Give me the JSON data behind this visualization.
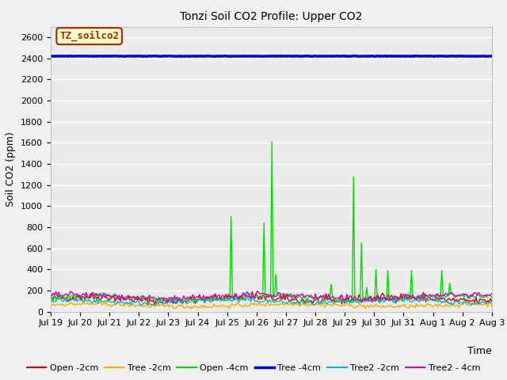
{
  "title": "Tonzi Soil CO2 Profile: Upper CO2",
  "xlabel": "Time",
  "ylabel": "Soil CO2 (ppm)",
  "ylim": [
    0,
    2700
  ],
  "yticks": [
    0,
    200,
    400,
    600,
    800,
    1000,
    1200,
    1400,
    1600,
    1800,
    2000,
    2200,
    2400,
    2600
  ],
  "bg_color": "#ebebeb",
  "fig_color": "#f0f0f0",
  "legend_label": "TZ_soilco2",
  "legend_bg": "#ffffcc",
  "legend_border": "#aa2200",
  "lines": {
    "Open-2cm": {
      "color": "#dd0000",
      "lw": 1.0
    },
    "Tree-2cm": {
      "color": "#ffaa00",
      "lw": 1.0
    },
    "Open-4cm": {
      "color": "#00dd00",
      "lw": 1.0
    },
    "Tree-4cm": {
      "color": "#0000dd",
      "lw": 2.5
    },
    "Tree2-2cm": {
      "color": "#00bbbb",
      "lw": 1.0
    },
    "Tree2-4cm": {
      "color": "#cc00cc",
      "lw": 1.0
    }
  },
  "tree4cm_value": 2420,
  "n_points": 336,
  "xtick_days": [
    0,
    1,
    2,
    3,
    4,
    5,
    6,
    7,
    8,
    9,
    10,
    11,
    12,
    13,
    14,
    15
  ],
  "xtick_labels": [
    "Jul 19",
    "Jul 20",
    "Jul 21",
    "Jul 22",
    "Jul 23",
    "Jul 24",
    "Jul 25",
    "Jul 26",
    "Jul 27",
    "Jul 28",
    "Jul 29",
    "Jul 30",
    "Jul 31",
    "Aug 1",
    "Aug 2",
    "Aug 3"
  ]
}
